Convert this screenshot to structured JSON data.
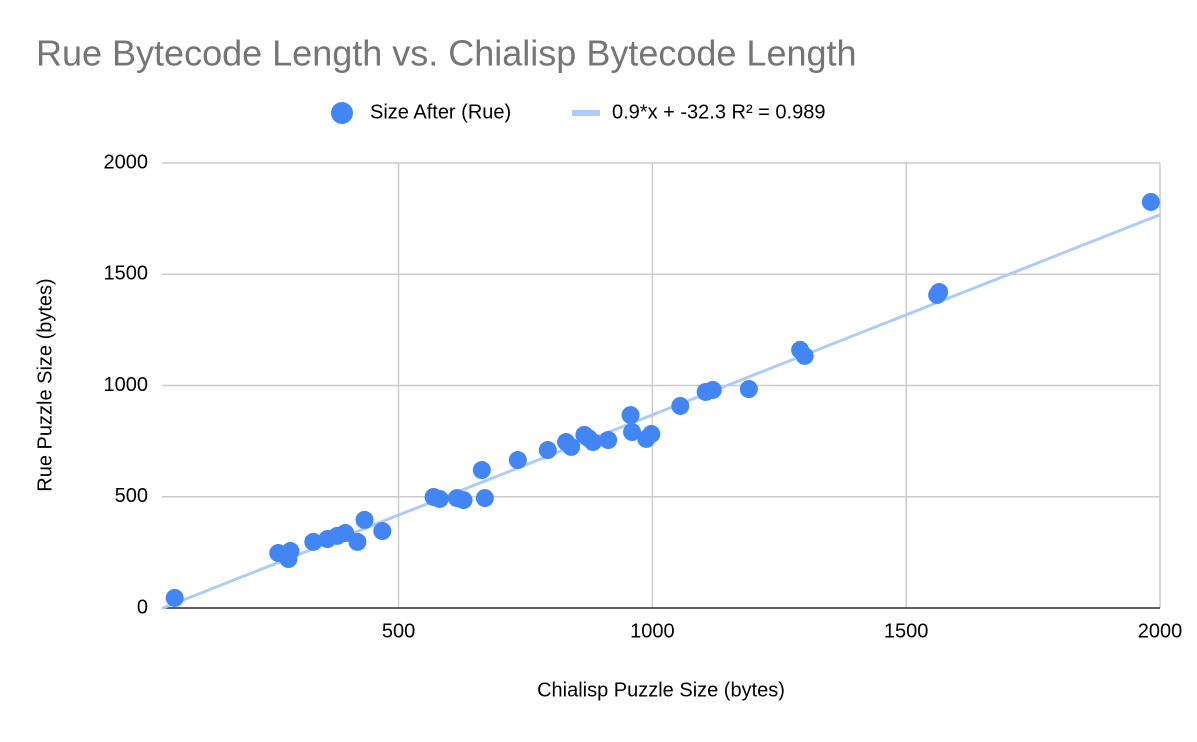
{
  "chart_data": {
    "type": "scatter",
    "title": "Rue Bytecode Length vs. Chialisp Bytecode Length",
    "x_label": "Chialisp Puzzle Size (bytes)",
    "y_label": "Rue Puzzle Size (bytes)",
    "series": [
      {
        "name": "Size After (Rue)",
        "color": "#4285f4",
        "x": [
          59,
          263,
          287,
          283,
          332,
          360,
          379,
          395,
          419,
          433,
          468,
          569,
          581,
          615,
          628,
          664,
          670,
          735,
          794,
          830,
          840,
          866,
          874,
          883,
          913,
          957,
          960,
          988,
          998,
          1055,
          1105,
          1119,
          1190,
          1291,
          1300,
          1561,
          1565,
          1982
        ],
        "values": [
          45,
          247,
          256,
          220,
          297,
          310,
          324,
          337,
          297,
          396,
          346,
          499,
          490,
          494,
          485,
          620,
          494,
          665,
          710,
          746,
          724,
          778,
          764,
          746,
          755,
          867,
          791,
          760,
          782,
          908,
          971,
          980,
          984,
          1160,
          1133,
          1407,
          1420,
          1825
        ]
      }
    ],
    "trendline": {
      "name": "0.9*x + -32.3 R² = 0.989",
      "color": "#aecbfa",
      "slope": 0.9,
      "intercept": -32.3
    },
    "xlim": [
      34,
      2000
    ],
    "xticks": [
      500,
      1000,
      1500,
      2000
    ],
    "ylim": [
      0,
      2000
    ],
    "yticks": [
      0,
      500,
      1000,
      1500,
      2000
    ],
    "grid": true
  }
}
